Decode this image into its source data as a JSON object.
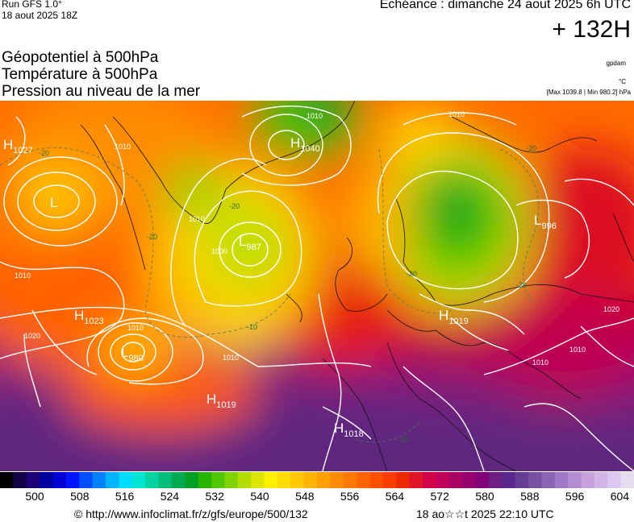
{
  "header": {
    "run": "Run GFS 1.0°",
    "run_time": "18 aout 2025 18Z",
    "validity": "Echéance : dimanche 24 aout 2025 6h UTC",
    "lead": "+ 132H",
    "title_lines": [
      "Géopotentiel à 500hPa",
      "Température à 500hPa",
      "Pression au niveau de la mer"
    ],
    "unit_gpdam": "gpdam",
    "unit_temp": "°C",
    "pressure_extremes": "[Max 1039.8 | Min 980.2] hPa"
  },
  "map": {
    "pressure_centers": [
      {
        "type": "H",
        "value": "1027"
      },
      {
        "type": "L",
        "value": ""
      },
      {
        "type": "H",
        "value": "1040"
      },
      {
        "type": "L",
        "value": "987"
      },
      {
        "type": "L",
        "value": "996"
      },
      {
        "type": "H",
        "value": "1023"
      },
      {
        "type": "L",
        "value": "980"
      },
      {
        "type": "H",
        "value": "1019"
      },
      {
        "type": "H",
        "value": "1019"
      },
      {
        "type": "H",
        "value": "1018"
      }
    ],
    "isobar_labels": [
      "1010",
      "1020",
      "1000",
      "1010",
      "1010",
      "1010",
      "1010",
      "1010",
      "1010",
      "1020",
      "1010",
      "1010"
    ],
    "temperature_labels": [
      "-20",
      "-20",
      "-20",
      "-20",
      "-10",
      "-10",
      "-20",
      "-20"
    ]
  },
  "color_scale": {
    "ticks": [
      "500",
      "508",
      "516",
      "524",
      "532",
      "540",
      "548",
      "556",
      "564",
      "572",
      "580",
      "588",
      "596",
      "604"
    ],
    "colors": [
      "#000000",
      "#140046",
      "#1e0078",
      "#0000a0",
      "#0000d2",
      "#0014ff",
      "#0050ff",
      "#0082ff",
      "#00b4ff",
      "#00dcff",
      "#00e6d2",
      "#00d2a0",
      "#00be78",
      "#00aa50",
      "#00a028",
      "#28b400",
      "#50c800",
      "#82d200",
      "#b4dc00",
      "#dce600",
      "#fff000",
      "#ffdc00",
      "#ffc800",
      "#ffb400",
      "#ffa000",
      "#ff8c00",
      "#ff7800",
      "#ff6400",
      "#ff5000",
      "#ff3c00",
      "#f02800",
      "#e01428",
      "#d20046",
      "#c0005a",
      "#aa0064",
      "#96006e",
      "#820078",
      "#6e1e82",
      "#5a288c",
      "#643c96",
      "#7850a0",
      "#8c64b4",
      "#a078c8",
      "#b48cd2",
      "#c8a0dc",
      "#d2b4e6",
      "#dcc8f0",
      "#e6dcf0"
    ]
  },
  "footer": {
    "credit": "© http://www.infoclimat.fr/z/gfs/europe/500/132",
    "generated": "18 ao☆☆t 2025 22:10 UTC"
  }
}
